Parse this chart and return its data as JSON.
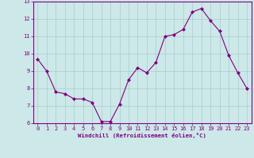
{
  "x": [
    0,
    1,
    2,
    3,
    4,
    5,
    6,
    7,
    8,
    9,
    10,
    11,
    12,
    13,
    14,
    15,
    16,
    17,
    18,
    19,
    20,
    21,
    22,
    23
  ],
  "y": [
    9.7,
    9.0,
    7.8,
    7.7,
    7.4,
    7.4,
    7.2,
    6.1,
    6.1,
    7.1,
    8.5,
    9.2,
    8.9,
    9.5,
    11.0,
    11.1,
    11.4,
    12.4,
    12.6,
    11.9,
    11.3,
    9.9,
    8.9,
    8.0
  ],
  "line_color": "#800080",
  "marker": "D",
  "marker_size": 2.0,
  "bg_color": "#cce8e8",
  "grid_color": "#aacccc",
  "xlabel": "Windchill (Refroidissement éolien,°C)",
  "xlabel_color": "#800080",
  "tick_color": "#800080",
  "ylim": [
    6,
    13
  ],
  "xlim_min": -0.5,
  "xlim_max": 23.5,
  "yticks": [
    6,
    7,
    8,
    9,
    10,
    11,
    12,
    13
  ],
  "xticks": [
    0,
    1,
    2,
    3,
    4,
    5,
    6,
    7,
    8,
    9,
    10,
    11,
    12,
    13,
    14,
    15,
    16,
    17,
    18,
    19,
    20,
    21,
    22,
    23
  ],
  "label_fontsize": 5.2,
  "tick_fontsize": 5.0,
  "linewidth": 0.8
}
